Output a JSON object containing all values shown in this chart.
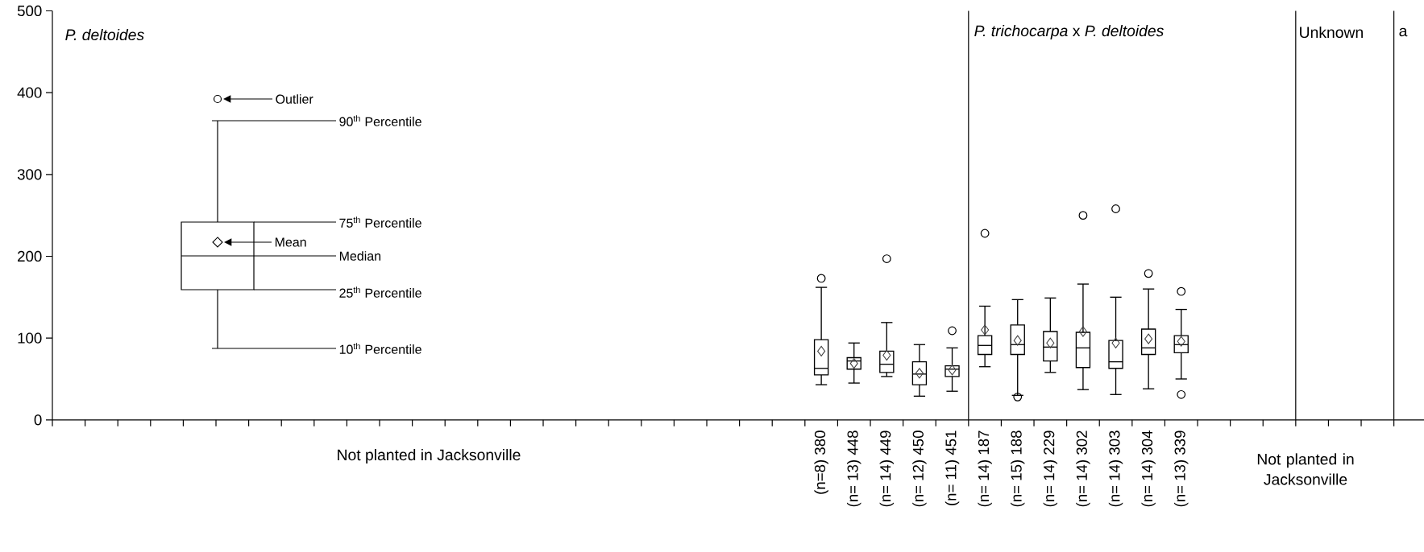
{
  "chart_data": {
    "type": "box",
    "categories": [
      null,
      null,
      null,
      null,
      null,
      null,
      null,
      null,
      null,
      null,
      null,
      null,
      null,
      null,
      null,
      null,
      null,
      null,
      null,
      null,
      null,
      null,
      null,
      "(n=8) 380",
      "(n= 13) 448",
      "(n= 14) 449",
      "(n= 12) 450",
      "(n= 11) 451",
      "(n= 14) 187",
      "(n= 15) 188",
      "(n= 14) 229",
      "(n= 14) 302",
      "(n= 14) 303",
      "(n= 14) 304",
      "(n= 13) 339",
      null,
      null,
      null,
      null,
      null,
      null,
      null
    ],
    "boxes": [
      null,
      null,
      null,
      null,
      null,
      null,
      null,
      null,
      null,
      null,
      null,
      null,
      null,
      null,
      null,
      null,
      null,
      null,
      null,
      null,
      null,
      null,
      null,
      {
        "low": 43,
        "q1": 55,
        "median": 63,
        "q3": 98,
        "high": 162,
        "mean": 84,
        "outliers": [
          173
        ]
      },
      {
        "low": 45,
        "q1": 62,
        "median": 72,
        "q3": 76,
        "high": 94,
        "mean": 69
      },
      {
        "low": 53,
        "q1": 58,
        "median": 68,
        "q3": 84,
        "high": 119,
        "mean": 79,
        "outliers": [
          197
        ]
      },
      {
        "low": 29,
        "q1": 43,
        "median": 56,
        "q3": 71,
        "high": 92,
        "mean": 57
      },
      {
        "low": 35,
        "q1": 53,
        "median": 62,
        "q3": 66,
        "high": 88,
        "mean": 61,
        "outliers": [
          109
        ]
      },
      {
        "low": 65,
        "q1": 80,
        "median": 91,
        "q3": 103,
        "high": 139,
        "mean": 110,
        "outliers": [
          228
        ]
      },
      {
        "low": 30,
        "q1": 80,
        "median": 92,
        "q3": 116,
        "high": 147,
        "mean": 97,
        "outliers": [
          28
        ]
      },
      {
        "low": 58,
        "q1": 72,
        "median": 89,
        "q3": 108,
        "high": 149,
        "mean": 94
      },
      {
        "low": 37,
        "q1": 64,
        "median": 88,
        "q3": 107,
        "high": 166,
        "mean": 108,
        "outliers": [
          250
        ]
      },
      {
        "low": 31,
        "q1": 63,
        "median": 71,
        "q3": 97,
        "high": 150,
        "mean": 94,
        "outliers": [
          258
        ]
      },
      {
        "low": 38,
        "q1": 80,
        "median": 88,
        "q3": 111,
        "high": 160,
        "mean": 99,
        "outliers": [
          179
        ]
      },
      {
        "low": 50,
        "q1": 82,
        "median": 92,
        "q3": 103,
        "high": 135,
        "mean": 96,
        "outliers": [
          157,
          31
        ]
      },
      null,
      null,
      null,
      null,
      null,
      null,
      null
    ],
    "ylim": [
      0,
      500
    ],
    "yticks": [
      0,
      100,
      200,
      300,
      400,
      500
    ],
    "annotations": [
      "P. deltoides",
      "*P. trichocarpa* x *P. deltoides*",
      "Unknown",
      "a",
      "Not planted in Jacksonville",
      "Not planted in Jacksonville",
      "Outlier",
      "90$^{th}$ Percentile",
      "75$^{th}$ Percentile",
      "Mean",
      "Median",
      "25$^{th}$ Percentile",
      "10$^{th}$ Percentile"
    ]
  }
}
